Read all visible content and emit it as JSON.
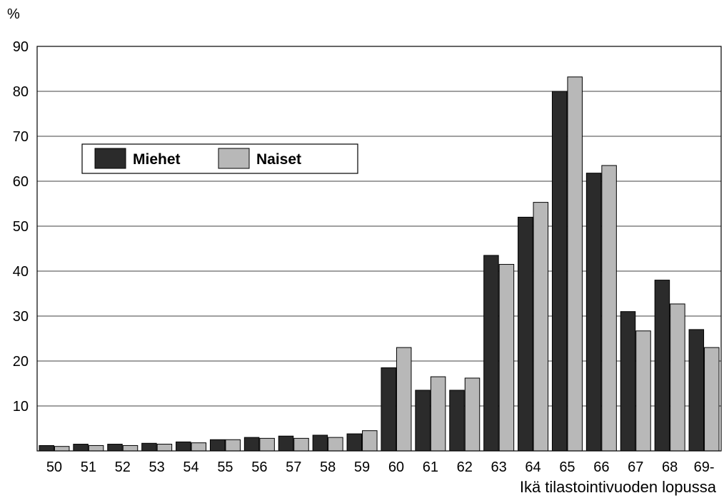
{
  "chart_data": {
    "type": "bar",
    "unit_label": "%",
    "xlabel": "Ikä tilastointivuoden lopussa",
    "ylabel": "",
    "ylim": [
      0,
      90
    ],
    "yticks": [
      10,
      20,
      30,
      40,
      50,
      60,
      70,
      80,
      90
    ],
    "grid": true,
    "legend_position": "top-left",
    "categories": [
      "50",
      "51",
      "52",
      "53",
      "54",
      "55",
      "56",
      "57",
      "58",
      "59",
      "60",
      "61",
      "62",
      "63",
      "64",
      "65",
      "66",
      "67",
      "68",
      "69-"
    ],
    "series": [
      {
        "name": "Miehet",
        "color": "#2b2b2b",
        "values": [
          1.2,
          1.5,
          1.5,
          1.7,
          2.0,
          2.5,
          3.0,
          3.3,
          3.5,
          3.8,
          18.5,
          13.5,
          13.5,
          43.5,
          52.0,
          80.0,
          61.8,
          31.0,
          38.0,
          27.0
        ]
      },
      {
        "name": "Naiset",
        "color": "#b8b8b8",
        "values": [
          1.0,
          1.2,
          1.2,
          1.5,
          1.8,
          2.5,
          2.8,
          2.8,
          3.0,
          4.5,
          23.0,
          16.5,
          16.2,
          41.5,
          55.3,
          83.2,
          63.5,
          26.7,
          32.7,
          23.0
        ]
      }
    ]
  }
}
